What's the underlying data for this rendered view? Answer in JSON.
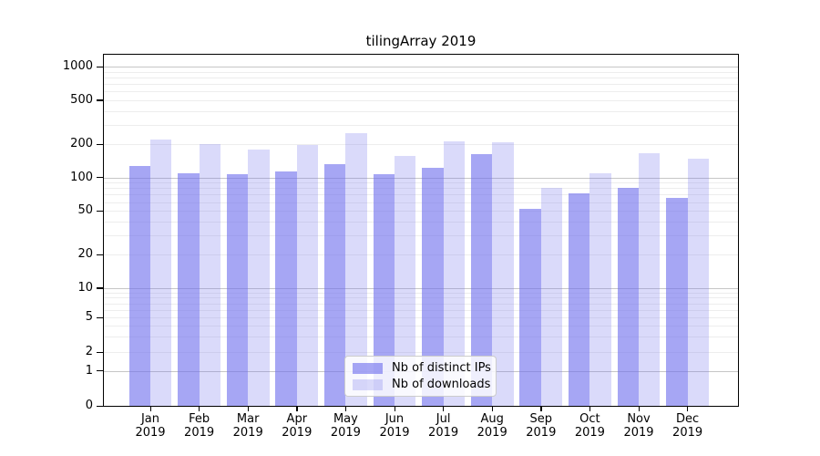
{
  "chart_data": {
    "type": "bar",
    "title": "tilingArray 2019",
    "categories": [
      "Jan",
      "Feb",
      "Mar",
      "Apr",
      "May",
      "Jun",
      "Jul",
      "Aug",
      "Sep",
      "Oct",
      "Nov",
      "Dec"
    ],
    "category_year": "2019",
    "series": [
      {
        "name": "Nb of distinct IPs",
        "color": "rgba(112,112,238,0.62)",
        "values": [
          127,
          110,
          108,
          114,
          131,
          108,
          122,
          162,
          52,
          72,
          81,
          65
        ]
      },
      {
        "name": "Nb of downloads",
        "color": "rgba(119,119,238,0.27)",
        "values": [
          222,
          200,
          178,
          197,
          250,
          158,
          214,
          208,
          80,
          110,
          165,
          149
        ]
      }
    ],
    "xlabel": "",
    "ylabel": "",
    "yticks": [
      1000,
      500,
      200,
      100,
      50,
      20,
      10,
      5,
      2,
      1,
      0
    ],
    "yscale": "symlog",
    "ylim": [
      0,
      1400
    ],
    "grid": "on",
    "legend_position": "lower center",
    "colors": {
      "bar_dark_hex": "#a9a9f5",
      "bar_light_hex": "#dcdcf9",
      "grid_major": "#c6c6c6",
      "grid_minor": "#ededed",
      "text": "#000000"
    }
  }
}
